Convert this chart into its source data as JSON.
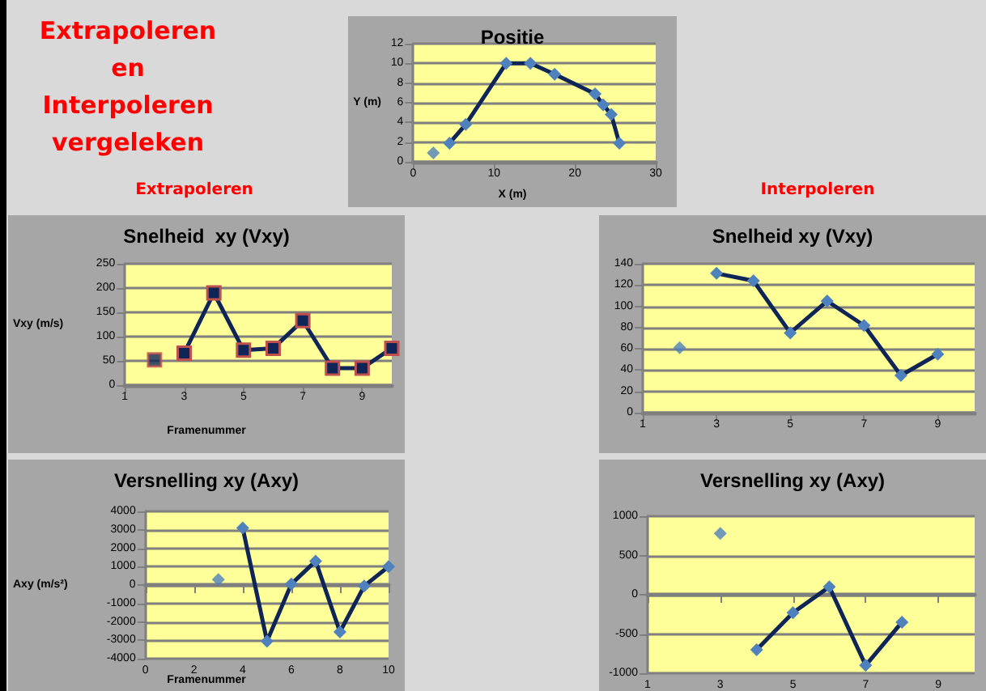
{
  "chart_data": [
    {
      "type": "line",
      "title": "Positie",
      "xlabel": "X (m)",
      "ylabel": "Y (m)",
      "annotations": [
        "Extrapoleren\nen\nInterpoleren\nvergeleken"
      ],
      "marker": "diamond",
      "grid": "y",
      "xlim": [
        0,
        30
      ],
      "xticks": [
        0,
        10,
        20,
        30
      ],
      "ylim": [
        0,
        12
      ],
      "yticks": [
        0,
        2,
        4,
        6,
        8,
        10,
        12
      ],
      "series": [
        {
          "type": "scatter",
          "color": "#4f81bd",
          "x": [
            2.5
          ],
          "values": [
            0.9
          ]
        },
        {
          "color": "#0f2557",
          "x": [
            4.5,
            6.5,
            11.5,
            14.5,
            17.5,
            22.5,
            23.5,
            24.5,
            25.5
          ],
          "values": [
            1.9,
            3.8,
            10,
            10,
            8.9,
            6.9,
            5.8,
            4.8,
            1.9
          ]
        }
      ]
    },
    {
      "type": "line",
      "title": "Snelheid  xy (Vxy)",
      "xlabel": "Framenummer",
      "ylabel": "Vxy (m/s)",
      "annotations": [
        "Extrapoleren"
      ],
      "marker": "square",
      "grid": "y",
      "xlim": [
        1,
        10
      ],
      "xticks": [
        1,
        3,
        5,
        7,
        9
      ],
      "ylim": [
        0,
        250
      ],
      "yticks": [
        0,
        50,
        100,
        150,
        200,
        250
      ],
      "series": [
        {
          "type": "scatter",
          "color": "#0f2557",
          "x": [
            2
          ],
          "values": [
            52
          ]
        },
        {
          "color": "#0f2557",
          "x": [
            3,
            4,
            5,
            6,
            7,
            8,
            9,
            10
          ],
          "values": [
            66,
            190,
            72,
            76,
            133,
            35,
            35,
            76
          ]
        }
      ]
    },
    {
      "type": "line",
      "title": "Snelheid xy (Vxy)",
      "annotations": [
        "Interpoleren"
      ],
      "marker": "diamond",
      "grid": "y",
      "xlim": [
        1,
        10
      ],
      "xticks": [
        1,
        3,
        5,
        7,
        9
      ],
      "ylim": [
        0,
        140
      ],
      "yticks": [
        0,
        20,
        40,
        60,
        80,
        100,
        120,
        140
      ],
      "series": [
        {
          "type": "scatter",
          "color": "#4f81bd",
          "x": [
            2
          ],
          "values": [
            61
          ]
        },
        {
          "color": "#0f2557",
          "x": [
            3,
            4,
            5,
            6,
            7,
            8,
            9
          ],
          "values": [
            131,
            124,
            75,
            105,
            82,
            35,
            55
          ]
        }
      ]
    },
    {
      "type": "line",
      "title": "Versnelling xy (Axy)",
      "xlabel": "Framenummer",
      "ylabel": "Axy (m/s²)",
      "marker": "diamond",
      "grid": "y",
      "xlim": [
        0,
        10
      ],
      "xticks": [
        0,
        2,
        4,
        6,
        8,
        10
      ],
      "ylim": [
        -4000,
        4000
      ],
      "yticks": [
        -4000,
        -3000,
        -2000,
        -1000,
        0,
        1000,
        2000,
        3000,
        4000
      ],
      "series": [
        {
          "type": "scatter",
          "color": "#4f81bd",
          "x": [
            3
          ],
          "values": [
            300
          ]
        },
        {
          "color": "#0f2557",
          "x": [
            4,
            5,
            6,
            7,
            8,
            9,
            10
          ],
          "values": [
            3100,
            -3050,
            50,
            1300,
            -2550,
            -50,
            1000
          ]
        }
      ]
    },
    {
      "type": "line",
      "title": "Versnelling xy (Axy)",
      "marker": "diamond",
      "grid": "y",
      "xlim": [
        1,
        10
      ],
      "xticks": [
        1,
        3,
        5,
        7,
        9
      ],
      "ylim": [
        -1000,
        1000
      ],
      "yticks": [
        -1000,
        -500,
        0,
        500,
        1000
      ],
      "series": [
        {
          "type": "scatter",
          "color": "#4f81bd",
          "x": [
            3
          ],
          "values": [
            780
          ]
        },
        {
          "color": "#0f2557",
          "x": [
            4,
            5,
            6,
            7,
            8
          ],
          "values": [
            -700,
            -230,
            100,
            -900,
            -350
          ]
        }
      ]
    }
  ]
}
